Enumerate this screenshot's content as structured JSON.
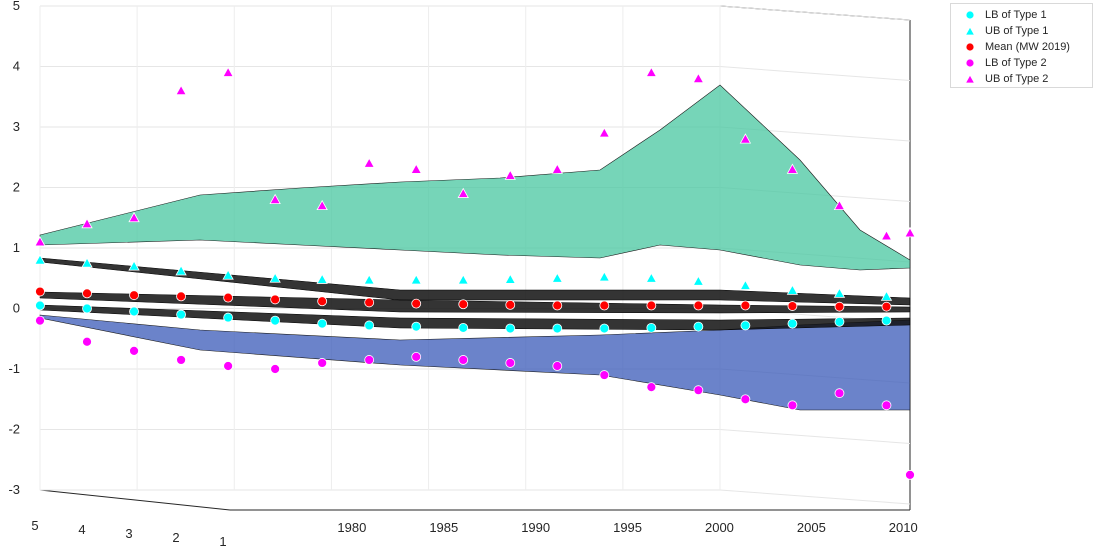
{
  "chart_data": {
    "type": "scatter3d",
    "title": "",
    "xlabel": "",
    "ylabel": "",
    "zlabel": "",
    "z_ticks": [
      "5",
      "4",
      "3",
      "2",
      "1",
      "0",
      "-1",
      "-2",
      "-3"
    ],
    "z_range": [
      -3,
      5
    ],
    "year_ticks": [
      "1980",
      "1985",
      "1990",
      "1995",
      "2000",
      "2005",
      "2010"
    ],
    "year_range": [
      1975,
      2012
    ],
    "depth_ticks": [
      "5",
      "4",
      "3",
      "2",
      "1"
    ],
    "grid": true,
    "legend_position": "top-right",
    "colors": {
      "type1": "#00ffff",
      "mean": "#ff0000",
      "type2": "#ff00ff",
      "marker_edge": "#ffffff"
    },
    "series": [
      {
        "name": "LB of Type 1",
        "marker": "circle",
        "color": "#00ffff",
        "x": [
          1975,
          1977,
          1979,
          1981,
          1983,
          1985,
          1987,
          1989,
          1991,
          1993,
          1995,
          1997,
          1999,
          2001,
          2003,
          2005,
          2007,
          2009,
          2011
        ],
        "y": [
          0.05,
          0.0,
          -0.05,
          -0.1,
          -0.15,
          -0.2,
          -0.25,
          -0.28,
          -0.3,
          -0.32,
          -0.33,
          -0.33,
          -0.33,
          -0.32,
          -0.3,
          -0.28,
          -0.25,
          -0.22,
          -0.2
        ]
      },
      {
        "name": "UB of Type 1",
        "marker": "triangle",
        "color": "#00ffff",
        "x": [
          1975,
          1977,
          1979,
          1981,
          1983,
          1985,
          1987,
          1989,
          1991,
          1993,
          1995,
          1997,
          1999,
          2001,
          2003,
          2005,
          2007,
          2009,
          2011
        ],
        "y": [
          0.8,
          0.75,
          0.7,
          0.62,
          0.55,
          0.5,
          0.48,
          0.47,
          0.47,
          0.47,
          0.48,
          0.5,
          0.52,
          0.5,
          0.45,
          0.38,
          0.3,
          0.25,
          0.2
        ]
      },
      {
        "name": "Mean (MW 2019)",
        "marker": "circle",
        "color": "#ff0000",
        "x": [
          1975,
          1977,
          1979,
          1981,
          1983,
          1985,
          1987,
          1989,
          1991,
          1993,
          1995,
          1997,
          1999,
          2001,
          2003,
          2005,
          2007,
          2009,
          2011
        ],
        "y": [
          0.28,
          0.25,
          0.22,
          0.2,
          0.18,
          0.15,
          0.12,
          0.1,
          0.08,
          0.07,
          0.06,
          0.05,
          0.05,
          0.05,
          0.05,
          0.05,
          0.04,
          0.03,
          0.03
        ]
      },
      {
        "name": "LB of Type 2",
        "marker": "circle",
        "color": "#ff00ff",
        "x": [
          1975,
          1977,
          1979,
          1981,
          1983,
          1985,
          1987,
          1989,
          1991,
          1993,
          1995,
          1997,
          1999,
          2001,
          2003,
          2005,
          2007,
          2009,
          2011,
          2012
        ],
        "y": [
          -0.2,
          -0.55,
          -0.7,
          -0.85,
          -0.95,
          -1.0,
          -0.9,
          -0.85,
          -0.8,
          -0.85,
          -0.9,
          -0.95,
          -1.1,
          -1.3,
          -1.35,
          -1.5,
          -1.6,
          -1.4,
          -1.6,
          -2.75
        ]
      },
      {
        "name": "UB of Type 2",
        "marker": "triangle",
        "color": "#ff00ff",
        "x": [
          1975,
          1977,
          1979,
          1981,
          1983,
          1985,
          1987,
          1989,
          1991,
          1993,
          1995,
          1997,
          1999,
          2001,
          2003,
          2005,
          2007,
          2009,
          2011,
          2012
        ],
        "y": [
          1.1,
          1.4,
          1.5,
          3.6,
          3.9,
          1.8,
          1.7,
          2.4,
          2.3,
          1.9,
          2.2,
          2.3,
          2.9,
          3.9,
          3.8,
          2.8,
          2.3,
          1.7,
          1.2,
          1.25
        ]
      }
    ]
  }
}
